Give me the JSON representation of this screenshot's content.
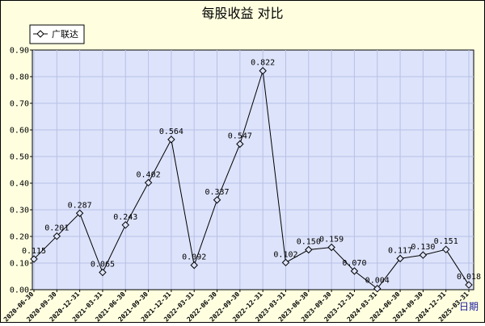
{
  "chart_data": {
    "type": "line",
    "title": "每股收益  对比",
    "xlabel": "日期",
    "ylabel": "",
    "ylim": [
      0,
      0.9
    ],
    "yticks": [
      "0.00",
      "0.10",
      "0.20",
      "0.30",
      "0.40",
      "0.50",
      "0.60",
      "0.70",
      "0.80",
      "0.90"
    ],
    "grid": true,
    "legend_position": "top-left",
    "categories": [
      "2020-06-30",
      "2020-09-30",
      "2020-12-31",
      "2021-03-31",
      "2021-06-30",
      "2021-09-30",
      "2021-12-31",
      "2022-03-31",
      "2022-06-30",
      "2022-09-30",
      "2022-12-31",
      "2023-03-31",
      "2023-06-30",
      "2023-09-30",
      "2023-12-31",
      "2024-03-31",
      "2024-06-30",
      "2024-09-30",
      "2024-12-31",
      "2025-03-31"
    ],
    "series": [
      {
        "name": "广联达",
        "color": "#000000",
        "values": [
          0.115,
          0.201,
          0.287,
          0.065,
          0.243,
          0.402,
          0.564,
          0.092,
          0.337,
          0.547,
          0.822,
          0.102,
          0.15,
          0.159,
          0.07,
          0.004,
          0.117,
          0.13,
          0.151,
          0.018
        ],
        "labels": [
          "0.115",
          "0.201",
          "0.287",
          "0.065",
          "0.243",
          "0.402",
          "0.564",
          "0.092",
          "0.337",
          "0.547",
          "0.822",
          "0.102",
          "0.150",
          "0.159",
          "0.070",
          "0.004",
          "0.117",
          "0.130",
          "0.151",
          "0.018"
        ]
      }
    ],
    "colors": {
      "plot_bg": "#dde3fa",
      "frame_bg": "#ffffe0",
      "grid": "#b8c0e8"
    }
  }
}
